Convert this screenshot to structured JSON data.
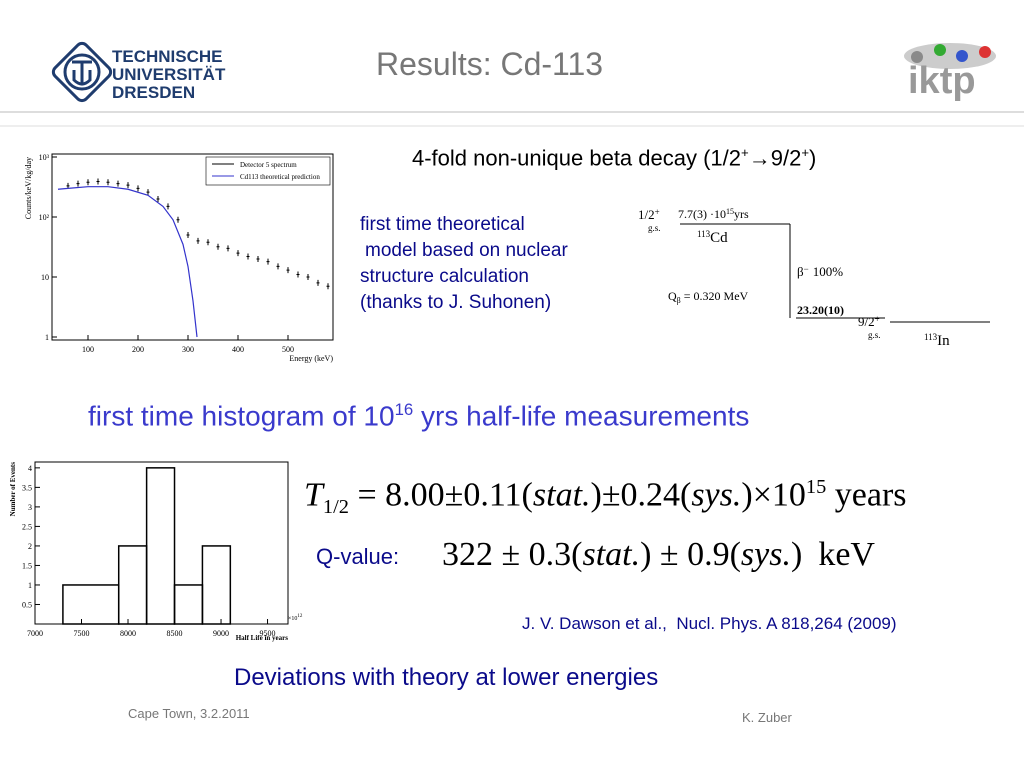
{
  "header": {
    "title": "Results: Cd-113",
    "university": [
      "TECHNISCHE",
      "UNIVERSITÄT",
      "DRESDEN"
    ],
    "institute": "iktp"
  },
  "decay_heading": [
    "4-fold non-unique beta decay (1/2",
    "+",
    "→9/2",
    "+",
    ")"
  ],
  "theory_note": [
    "first time theoretical",
    "model based on nuclear",
    "structure calculation",
    "(thanks to J. Suhonen)"
  ],
  "decay_scheme": {
    "parent_spin": "1/2",
    "parent_parity": "+",
    "parent_level": "g.s.",
    "half_life": "7.7(3) ·10",
    "half_life_exponent": "15",
    "half_life_unit": "yrs",
    "parent_mass": "113",
    "parent": "Cd",
    "branch": "β",
    "branch_charge": "−",
    "branch_ratio": "100%",
    "q_symbol": "Q",
    "q_subscript": "β",
    "q_value": "= 0.320 MeV",
    "log_ft": "23.20(10)",
    "daughter_spin": "9/2",
    "daughter_parity": "+",
    "daughter_level": "g.s.",
    "daughter_mass": "113",
    "daughter": "In"
  },
  "chart_data": [
    {
      "type": "line",
      "xlabel": "Energy (keV)",
      "ylabel": "Counts/keV/kg/day",
      "log_y": true,
      "xlim": [
        28,
        590
      ],
      "ylim": [
        1,
        1000
      ],
      "xticks": [
        100,
        200,
        300,
        400,
        500
      ],
      "yticks": [
        1,
        10,
        {
          "value": 100,
          "label": "10²"
        },
        {
          "value": 1000,
          "label": "10³"
        }
      ],
      "series": [
        {
          "name": "Detector 5 spectrum",
          "color": "#000000",
          "marker": "cross",
          "x": [
            60,
            80,
            100,
            120,
            140,
            160,
            180,
            200,
            220,
            240,
            260,
            280,
            300,
            320,
            340,
            360,
            380,
            400,
            420,
            440,
            460,
            480,
            500,
            520,
            540,
            560,
            580
          ],
          "values": [
            330,
            360,
            380,
            390,
            380,
            360,
            340,
            300,
            260,
            200,
            150,
            90,
            50,
            40,
            38,
            32,
            30,
            25,
            22,
            20,
            18,
            15,
            13,
            11,
            10,
            8,
            7
          ]
        },
        {
          "name": "Cd113 theoretical prediction",
          "color": "#3333cc",
          "x": [
            40,
            60,
            100,
            140,
            180,
            220,
            250,
            270,
            290,
            300,
            310,
            318
          ],
          "values": [
            290,
            300,
            320,
            320,
            290,
            230,
            150,
            90,
            35,
            15,
            4,
            1
          ]
        }
      ]
    },
    {
      "type": "histogram",
      "xlabel": "Half Life in years",
      "x_multiplier": "×10",
      "x_multiplier_exponent": "12",
      "ylabel": "Number of Events",
      "bins": [
        7300,
        7900,
        8200,
        8500,
        8800,
        9100
      ],
      "values": [
        1,
        2,
        4,
        1,
        2
      ],
      "color": "#000000",
      "xlim": [
        7000,
        9720
      ],
      "ylim": [
        0,
        4.15
      ],
      "xticks": [
        7000,
        7500,
        8000,
        8500,
        9000,
        9500
      ],
      "yticks": [
        0.5,
        1,
        1.5,
        2,
        2.5,
        3,
        3.5,
        4
      ]
    }
  ],
  "histogram_heading": [
    "first time histogram of 10",
    "16",
    " yrs half-life measurements"
  ],
  "half_life": {
    "symbol": "T",
    "subscript": "1/2",
    "value": " = 8.00±0.11(",
    "stat": "stat.",
    "mid": ")±0.24(",
    "sys": "sys.",
    "end": ")×10",
    "exponent": "15",
    "unit": " years"
  },
  "q_value": {
    "label": "Q-value:",
    "value": "322 ± 0.3(",
    "stat": "stat.",
    "mid": ") ± 0.9(",
    "sys": "sys.",
    "end": ")",
    "unit": "keV"
  },
  "reference": "J. V. Dawson et al.,  Nucl. Phys. A 818,264 (2009)",
  "conclusion": "Deviations with theory at lower energies",
  "footer": {
    "left": "Cape Town, 3.2.2011",
    "right": "K. Zuber"
  }
}
